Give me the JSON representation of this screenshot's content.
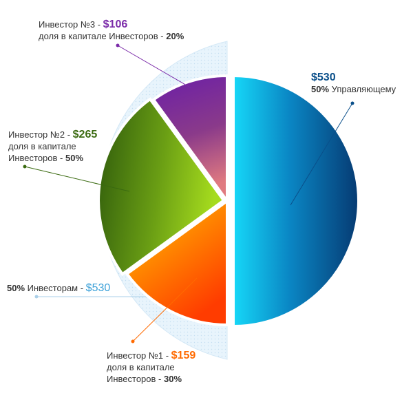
{
  "chart_data": {
    "type": "pie",
    "slices": [
      {
        "name": "Управляющему",
        "amount": "$530",
        "value": 530,
        "percent_text": "50%",
        "color": "#0a4f8a"
      },
      {
        "name": "Инвестор №1",
        "amount": "$159",
        "value": 159,
        "caption": "доля в капитале",
        "caption2": "Инвесторов",
        "percent_text": "30%",
        "color": "#ff6a00"
      },
      {
        "name": "Инвестор №2",
        "amount": "$265",
        "value": 265,
        "caption": "доля в капитале",
        "caption2": "Инвесторов",
        "percent_text": "50%",
        "color": "#5a8a10"
      },
      {
        "name": "Инвестор №3",
        "amount": "$106",
        "value": 106,
        "caption": "доля в капитале Инвесторов",
        "percent_text": "20%",
        "color": "#6a2a9a"
      }
    ],
    "investors_group": {
      "percent_text": "50%",
      "label": "Инвесторам",
      "amount": "$530",
      "value": 530,
      "color": "#3aa0d8"
    }
  },
  "labels": {
    "manager_amount": "$530",
    "manager_percent": "50%",
    "manager_text": "Управляющему",
    "inv3_name": "Инвестор №3",
    "inv3_amount": "$106",
    "inv3_caption": "доля в капитале Инвесторов",
    "inv3_percent": "20%",
    "inv2_name": "Инвестор №2",
    "inv2_amount": "$265",
    "inv2_caption": "доля в капитале",
    "inv2_caption2": "Инвесторов",
    "inv2_percent": "50%",
    "group_percent": "50%",
    "group_label": "Инвесторам",
    "group_amount": "$530",
    "inv1_name": "Инвестор №1",
    "inv1_amount": "$159",
    "inv1_caption": "доля в капитале",
    "inv1_caption2": "Инвесторов",
    "inv1_percent": "30%"
  },
  "colors": {
    "manager": "#0a4f8a",
    "inv1": "#ff6a00",
    "inv2": "#4a7a10",
    "inv3": "#7a2aa8",
    "group": "#3aa0d8",
    "text": "#333333"
  }
}
